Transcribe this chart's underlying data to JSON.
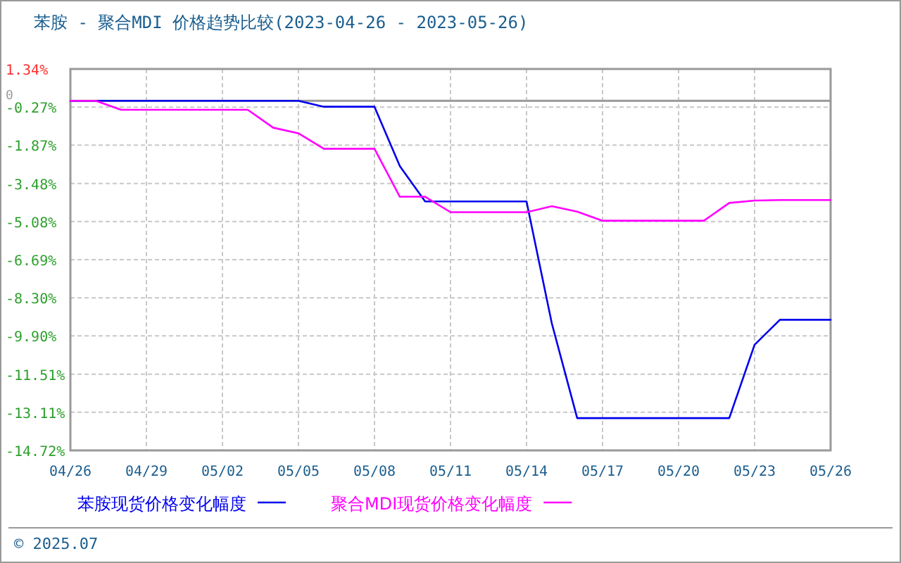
{
  "chart_data": {
    "type": "line",
    "title": "苯胺 - 聚合MDI 价格趋势比较(2023-04-26 - 2023-05-26)",
    "annotations": [
      "© 2025.07"
    ],
    "xlim": [
      "2023-04-26",
      "2023-05-26"
    ],
    "xticks": [
      {
        "value": "2023-04-26",
        "label": "04/26"
      },
      {
        "value": "2023-04-29",
        "label": "04/29"
      },
      {
        "value": "2023-05-02",
        "label": "05/02"
      },
      {
        "value": "2023-05-05",
        "label": "05/05"
      },
      {
        "value": "2023-05-08",
        "label": "05/08"
      },
      {
        "value": "2023-05-11",
        "label": "05/11"
      },
      {
        "value": "2023-05-14",
        "label": "05/14"
      },
      {
        "value": "2023-05-17",
        "label": "05/17"
      },
      {
        "value": "2023-05-20",
        "label": "05/20"
      },
      {
        "value": "2023-05-23",
        "label": "05/23"
      },
      {
        "value": "2023-05-26",
        "label": "05/26"
      }
    ],
    "ylim": [
      -14.72,
      1.34
    ],
    "yticks": [
      {
        "value": 1.34,
        "label": "1.34%"
      },
      {
        "value": -0.27,
        "label": "-0.27%"
      },
      {
        "value": -1.87,
        "label": "-1.87%"
      },
      {
        "value": -3.48,
        "label": "-3.48%"
      },
      {
        "value": -5.08,
        "label": "-5.08%"
      },
      {
        "value": -6.69,
        "label": "-6.69%"
      },
      {
        "value": -8.3,
        "label": "-8.30%"
      },
      {
        "value": -9.9,
        "label": "-9.90%"
      },
      {
        "value": -11.51,
        "label": "-11.51%"
      },
      {
        "value": -13.11,
        "label": "-13.11%"
      },
      {
        "value": -14.72,
        "label": "-14.72%"
      }
    ],
    "ref_lines": [
      {
        "axis": "y",
        "value": 0,
        "label": "0",
        "color": "#999999"
      }
    ],
    "grid": true,
    "legend": "bottom",
    "marker": "none",
    "line_style": "solid",
    "series": [
      {
        "name": "苯胺现货价格变化幅度",
        "color": "#0000ee",
        "x": [
          "2023-04-26",
          "2023-05-05",
          "2023-05-06",
          "2023-05-08",
          "2023-05-09",
          "2023-05-10",
          "2023-05-14",
          "2023-05-15",
          "2023-05-16",
          "2023-05-22",
          "2023-05-23",
          "2023-05-24",
          "2023-05-26"
        ],
        "values": [
          0,
          0,
          -0.25,
          -0.25,
          -2.75,
          -4.24,
          -4.24,
          -9.38,
          -13.36,
          -13.36,
          -10.27,
          -9.22,
          -9.22
        ]
      },
      {
        "name": "聚合MDI现货价格变化幅度",
        "color": "#ff00ff",
        "x": [
          "2023-04-26",
          "2023-04-27",
          "2023-04-28",
          "2023-05-03",
          "2023-05-04",
          "2023-05-05",
          "2023-05-06",
          "2023-05-08",
          "2023-05-09",
          "2023-05-10",
          "2023-05-11",
          "2023-05-14",
          "2023-05-15",
          "2023-05-16",
          "2023-05-17",
          "2023-05-21",
          "2023-05-22",
          "2023-05-23",
          "2023-05-24",
          "2023-05-26"
        ],
        "values": [
          0,
          0,
          -0.38,
          -0.38,
          -1.13,
          -1.37,
          -2.02,
          -2.02,
          -4.04,
          -4.04,
          -4.69,
          -4.69,
          -4.44,
          -4.67,
          -5.05,
          -5.05,
          -4.3,
          -4.2,
          -4.18,
          -4.18
        ]
      }
    ]
  }
}
